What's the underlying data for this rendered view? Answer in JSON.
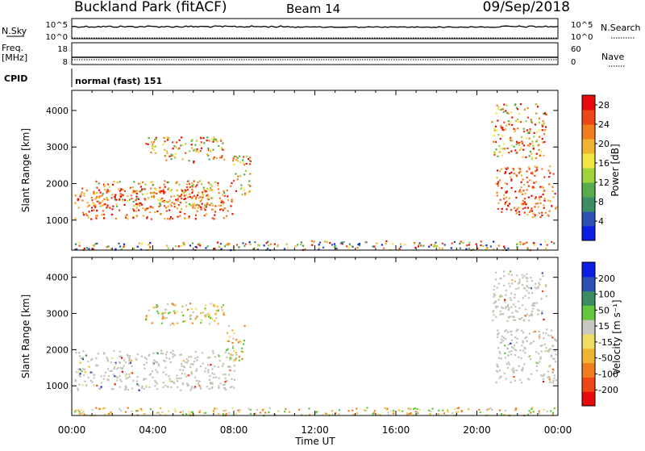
{
  "header": {
    "station": "Buckland Park (fitACF)",
    "beam": "Beam 14",
    "date": "09/Sep/2018"
  },
  "strip_labels": {
    "nsky": "N.Sky",
    "nsearch": "N.Search",
    "freq": "Freq.",
    "mhz": "[MHz]",
    "nave": "Nave",
    "cpid": "CPID",
    "mode": "normal (fast) 151",
    "nsky_top": "10^5",
    "nsky_bot": "10^0",
    "nsearch_top": "10^5",
    "nsearch_bot": "10^0",
    "freq_top": "18",
    "freq_bot": "8",
    "nave_top": "60",
    "nave_bot": "0"
  },
  "colors": {
    "power_scale": [
      "#0a1ee6",
      "#2d50b4",
      "#3c8c64",
      "#5aaa50",
      "#a0d23c",
      "#f0e646",
      "#f0b432",
      "#f07d1e",
      "#ee4614",
      "#e60a0a"
    ],
    "velocity_scale": [
      "#e60a0a",
      "#ee4614",
      "#f07d1e",
      "#f0b432",
      "#f0dc64",
      "#c8c8c0",
      "#64c83c",
      "#3c8c64",
      "#2d50b4",
      "#0a1ee6"
    ],
    "ground_scatter": "#c3c3b9"
  },
  "chart_data": [
    {
      "type": "heatmap",
      "name": "Power",
      "ylabel": "Slant Range [km]",
      "xlabel": "",
      "xlim": [
        "00:00",
        "24:00"
      ],
      "ylim": [
        180,
        4550
      ],
      "yticks": [
        1000,
        2000,
        3000,
        4000
      ],
      "colorbar": {
        "label": "Power [dB]",
        "ticks": [
          4,
          8,
          12,
          16,
          20,
          24,
          28
        ],
        "range": [
          0,
          30
        ]
      },
      "regions": [
        {
          "t0": 0.1,
          "t1": 7.8,
          "r_lo": 200,
          "r_hi": 420,
          "level": "mixed"
        },
        {
          "t0": 7.8,
          "t1": 23.8,
          "r_lo": 200,
          "r_hi": 450,
          "level": "mixed"
        },
        {
          "t0": 0.1,
          "t1": 7.9,
          "r_lo": 1050,
          "r_hi": 1900,
          "level": "high"
        },
        {
          "t0": 1.0,
          "t1": 7.5,
          "r_lo": 1400,
          "r_hi": 2100,
          "level": "medium"
        },
        {
          "t0": 3.6,
          "t1": 7.5,
          "r_lo": 2600,
          "r_hi": 3300,
          "level": "medium"
        },
        {
          "t0": 7.8,
          "t1": 8.8,
          "r_lo": 1700,
          "r_hi": 2800,
          "level": "medium"
        },
        {
          "t0": 20.9,
          "t1": 23.9,
          "r_lo": 1100,
          "r_hi": 2500,
          "level": "high"
        },
        {
          "t0": 20.7,
          "t1": 23.4,
          "r_lo": 2700,
          "r_hi": 4200,
          "level": "medium"
        }
      ]
    },
    {
      "type": "heatmap",
      "name": "Velocity",
      "ylabel": "Slant Range [km]",
      "xlabel": "Time UT",
      "xlim": [
        "00:00",
        "24:00"
      ],
      "xticks": [
        "00:00",
        "04:00",
        "08:00",
        "12:00",
        "16:00",
        "20:00",
        "00:00"
      ],
      "ylim": [
        180,
        4550
      ],
      "yticks": [
        1000,
        2000,
        3000,
        4000
      ],
      "colorbar": {
        "label": "Velocity [m s⁻¹]",
        "ticks": [
          "200",
          "100",
          "50",
          "15",
          "-15",
          "-50",
          "-100",
          "-200"
        ]
      },
      "regions": [
        {
          "t0": 0.1,
          "t1": 23.8,
          "r_lo": 200,
          "r_hi": 420,
          "level": "low"
        },
        {
          "t0": 0.1,
          "t1": 8.0,
          "r_lo": 900,
          "r_hi": 2000,
          "level": "ground"
        },
        {
          "t0": 7.6,
          "t1": 8.5,
          "r_lo": 1700,
          "r_hi": 2700,
          "level": "low"
        },
        {
          "t0": 3.6,
          "t1": 7.5,
          "r_lo": 2700,
          "r_hi": 3300,
          "level": "low"
        },
        {
          "t0": 20.9,
          "t1": 23.9,
          "r_lo": 1100,
          "r_hi": 2600,
          "level": "ground"
        },
        {
          "t0": 20.7,
          "t1": 23.4,
          "r_lo": 2800,
          "r_hi": 4200,
          "level": "ground"
        }
      ]
    }
  ]
}
